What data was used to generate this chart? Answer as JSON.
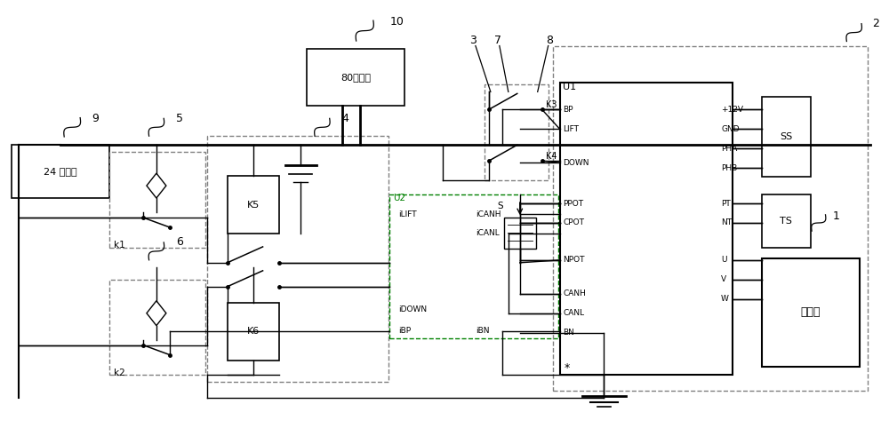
{
  "bg_color": "#ffffff",
  "line_color": "#000000",
  "labels": {
    "box_24v": "24 伏电源",
    "box_80v": "80伏电源",
    "k1": "k1",
    "k2": "k2",
    "K5": "K5",
    "K6": "K6",
    "U1": "U1",
    "U2": "U2",
    "SS": "SS",
    "TS": "TS",
    "pump": "泵电机",
    "n9": "9",
    "n10": "10",
    "n1": "1",
    "n2": "2",
    "n3": "3",
    "n4": "4",
    "n5": "5",
    "n6": "6",
    "n7": "7",
    "n8": "8",
    "K3": "K3",
    "K4": "K4",
    "BP": "BP",
    "LIFT": "LIFT",
    "DOWN": "DOWN",
    "PPOT": "PPOT",
    "CPOT": "CPOT",
    "NPOT": "NPOT",
    "CANH": "CANH",
    "CANL": "CANL",
    "BN": "BN",
    "p12v": "+12V",
    "GND": "GND",
    "PHA": "PHA",
    "PHB": "PHB",
    "PT": "PT",
    "NT": "NT",
    "U": "U",
    "V": "V",
    "W": "W",
    "iLIFT": "iLIFT",
    "iCANH": "iCANH",
    "iCANL": "iCANL",
    "iDOWN": "iDOWN",
    "iBP": "iBP",
    "iBN": "iBN",
    "S": "S",
    "star": "*"
  }
}
